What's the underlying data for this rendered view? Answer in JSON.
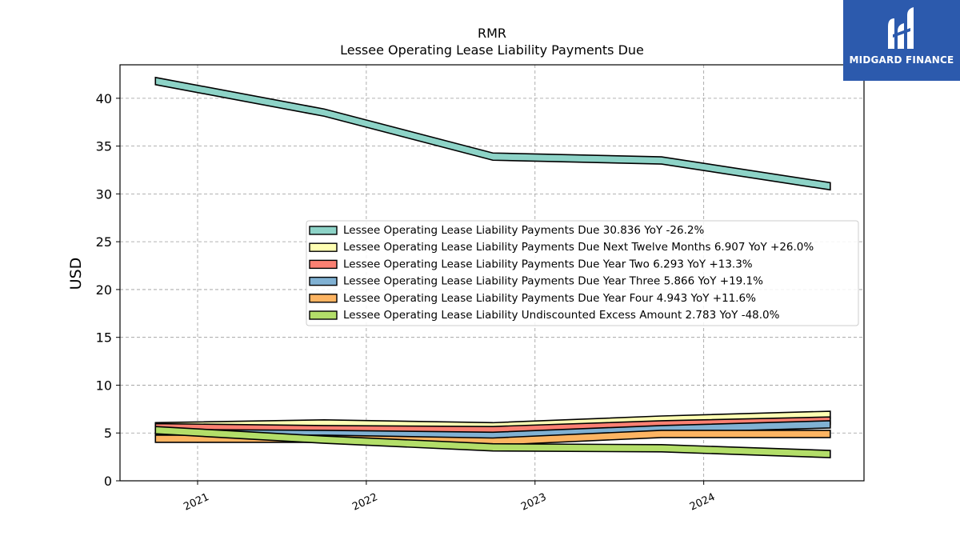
{
  "chart_data": {
    "type": "area",
    "title": "RMR",
    "subtitle": "Lessee Operating Lease Liability Payments Due",
    "ylabel": "USD",
    "xlabel": "",
    "ylim": [
      0,
      43.5
    ],
    "yticks": [
      0,
      5,
      10,
      15,
      20,
      25,
      30,
      35,
      40
    ],
    "xrange": [
      2020.54,
      2024.95
    ],
    "xticks": [
      {
        "value": 2021,
        "label": "2021"
      },
      {
        "value": 2022,
        "label": "2022"
      },
      {
        "value": 2023,
        "label": "2023"
      },
      {
        "value": 2024,
        "label": "2024"
      }
    ],
    "x": [
      2020.75,
      2021.75,
      2022.75,
      2023.75,
      2024.75
    ],
    "grid": true,
    "legend_position": "center-right",
    "series": [
      {
        "name": "Lessee Operating Lease Liability Payments Due",
        "legend": "Lessee Operating Lease Liability Payments Due  30.836 YoY -26.2%",
        "color": "#8dd3c7",
        "values": [
          41.8,
          38.5,
          33.9,
          33.5,
          30.8
        ]
      },
      {
        "name": "Lessee Operating Lease Liability Payments Due Next Twelve Months",
        "legend": "Lessee Operating Lease Liability Payments Due Next Twelve Months  6.907 YoY +26.0%",
        "color": "#ffffb3",
        "values": [
          5.7,
          6.0,
          5.7,
          6.4,
          6.9
        ]
      },
      {
        "name": "Lessee Operating Lease Liability Payments Due Year Two",
        "legend": "Lessee Operating Lease Liability Payments Due Year Two  6.293 YoY +13.3%",
        "color": "#fb8072",
        "values": [
          5.6,
          5.4,
          5.3,
          5.9,
          6.3
        ]
      },
      {
        "name": "Lessee Operating Lease Liability Payments Due Year Three",
        "legend": "Lessee Operating Lease Liability Payments Due Year Three  5.866 YoY +19.1%",
        "color": "#80b1d3",
        "values": [
          5.0,
          4.9,
          4.7,
          5.4,
          5.9
        ]
      },
      {
        "name": "Lessee Operating Lease Liability Payments Due Year Four",
        "legend": "Lessee Operating Lease Liability Payments Due Year Four  4.943 YoY +11.6%",
        "color": "#fdb462",
        "values": [
          4.4,
          4.4,
          4.1,
          4.9,
          4.9
        ]
      },
      {
        "name": "Lessee Operating Lease Liability Undiscounted Excess Amount",
        "legend": "Lessee Operating Lease Liability Undiscounted Excess Amount  2.783 YoY -48.0%",
        "color": "#b3de69",
        "values": [
          5.3,
          4.3,
          3.5,
          3.4,
          2.8
        ]
      }
    ]
  },
  "logo": {
    "text": "MIDGARD FINANCE",
    "bg_color": "#2c5aad"
  }
}
